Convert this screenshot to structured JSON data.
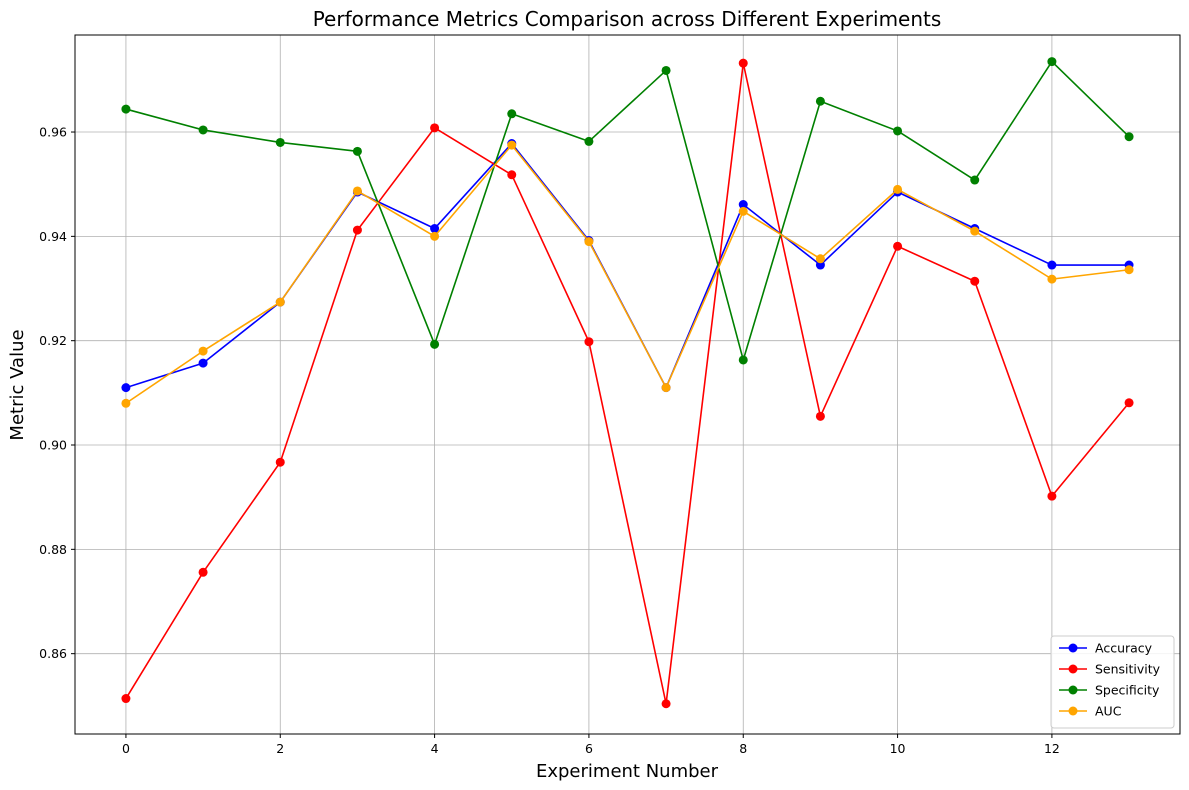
{
  "chart_data": {
    "type": "line",
    "title": "Performance Metrics Comparison across Different Experiments",
    "xlabel": "Experiment Number",
    "ylabel": "Metric Value",
    "x": [
      0,
      1,
      2,
      3,
      4,
      5,
      6,
      7,
      8,
      9,
      10,
      11,
      12,
      13
    ],
    "xlim": [
      -0.66,
      13.66
    ],
    "ylim": [
      0.8446,
      0.9786
    ],
    "xticks": [
      0,
      2,
      4,
      6,
      8,
      10,
      12
    ],
    "yticks": [
      0.86,
      0.88,
      0.9,
      0.92,
      0.94,
      0.96
    ],
    "ytick_labels": [
      "0.86",
      "0.88",
      "0.90",
      "0.92",
      "0.94",
      "0.96"
    ],
    "xtick_labels": [
      "0",
      "2",
      "4",
      "6",
      "8",
      "10",
      "12"
    ],
    "grid": true,
    "legend_position": "bottom-right",
    "series": [
      {
        "name": "Accuracy",
        "color": "#0000ff",
        "values": [
          0.911,
          0.9157,
          0.9274,
          0.9485,
          0.9415,
          0.9578,
          0.9392,
          0.911,
          0.9461,
          0.9345,
          0.9485,
          0.9415,
          0.9345,
          0.9345
        ]
      },
      {
        "name": "Sensitivity",
        "color": "#ff0000",
        "values": [
          0.8514,
          0.8756,
          0.8967,
          0.9412,
          0.9608,
          0.9518,
          0.9198,
          0.8504,
          0.9732,
          0.9055,
          0.9381,
          0.9314,
          0.8902,
          0.9081
        ]
      },
      {
        "name": "Specificity",
        "color": "#008000",
        "values": [
          0.9644,
          0.9604,
          0.958,
          0.9563,
          0.9193,
          0.9635,
          0.9582,
          0.9718,
          0.9163,
          0.9659,
          0.9602,
          0.9508,
          0.9735,
          0.9591
        ]
      },
      {
        "name": "AUC",
        "color": "#ffa500",
        "values": [
          0.908,
          0.918,
          0.9274,
          0.9487,
          0.94,
          0.9575,
          0.939,
          0.911,
          0.9448,
          0.9357,
          0.949,
          0.941,
          0.9318,
          0.9336
        ]
      }
    ]
  }
}
